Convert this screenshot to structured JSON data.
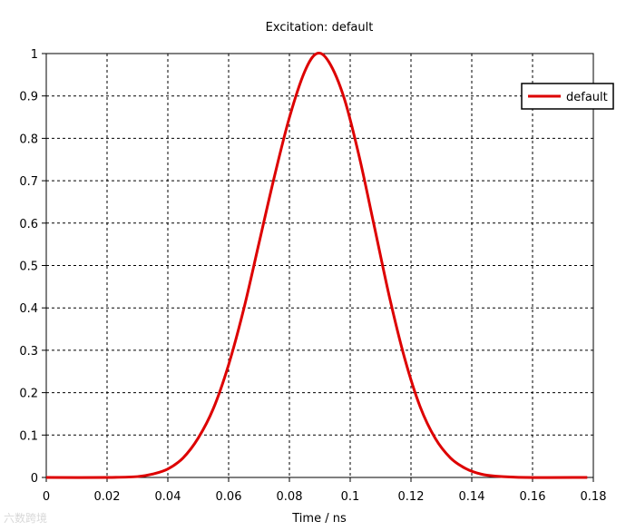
{
  "chart_data": {
    "type": "line",
    "title": "Excitation: default",
    "xlabel": "Time / ns",
    "ylabel": "",
    "xlim": [
      0,
      0.18
    ],
    "ylim": [
      0,
      1
    ],
    "xticks": [
      "0",
      "0.02",
      "0.04",
      "0.06",
      "0.08",
      "0.1",
      "0.12",
      "0.14",
      "0.16",
      "0.18"
    ],
    "yticks": [
      "0",
      "0.1",
      "0.2",
      "0.3",
      "0.4",
      "0.5",
      "0.6",
      "0.7",
      "0.8",
      "0.9",
      "1"
    ],
    "grid": true,
    "legend_position": "top-right",
    "series": [
      {
        "name": "default",
        "color": "#dd0000",
        "x": [
          0,
          0.02,
          0.03,
          0.035,
          0.04,
          0.045,
          0.05,
          0.055,
          0.06,
          0.065,
          0.07,
          0.075,
          0.08,
          0.085,
          0.089,
          0.093,
          0.098,
          0.103,
          0.108,
          0.113,
          0.118,
          0.123,
          0.128,
          0.133,
          0.138,
          0.143,
          0.148,
          0.158,
          0.178
        ],
        "y": [
          0,
          0,
          0.002,
          0.008,
          0.02,
          0.046,
          0.093,
          0.163,
          0.266,
          0.398,
          0.553,
          0.708,
          0.849,
          0.957,
          1.0,
          0.98,
          0.895,
          0.756,
          0.59,
          0.423,
          0.279,
          0.167,
          0.092,
          0.046,
          0.021,
          0.008,
          0.003,
          0,
          0
        ]
      }
    ]
  },
  "watermark": "六数跨境"
}
